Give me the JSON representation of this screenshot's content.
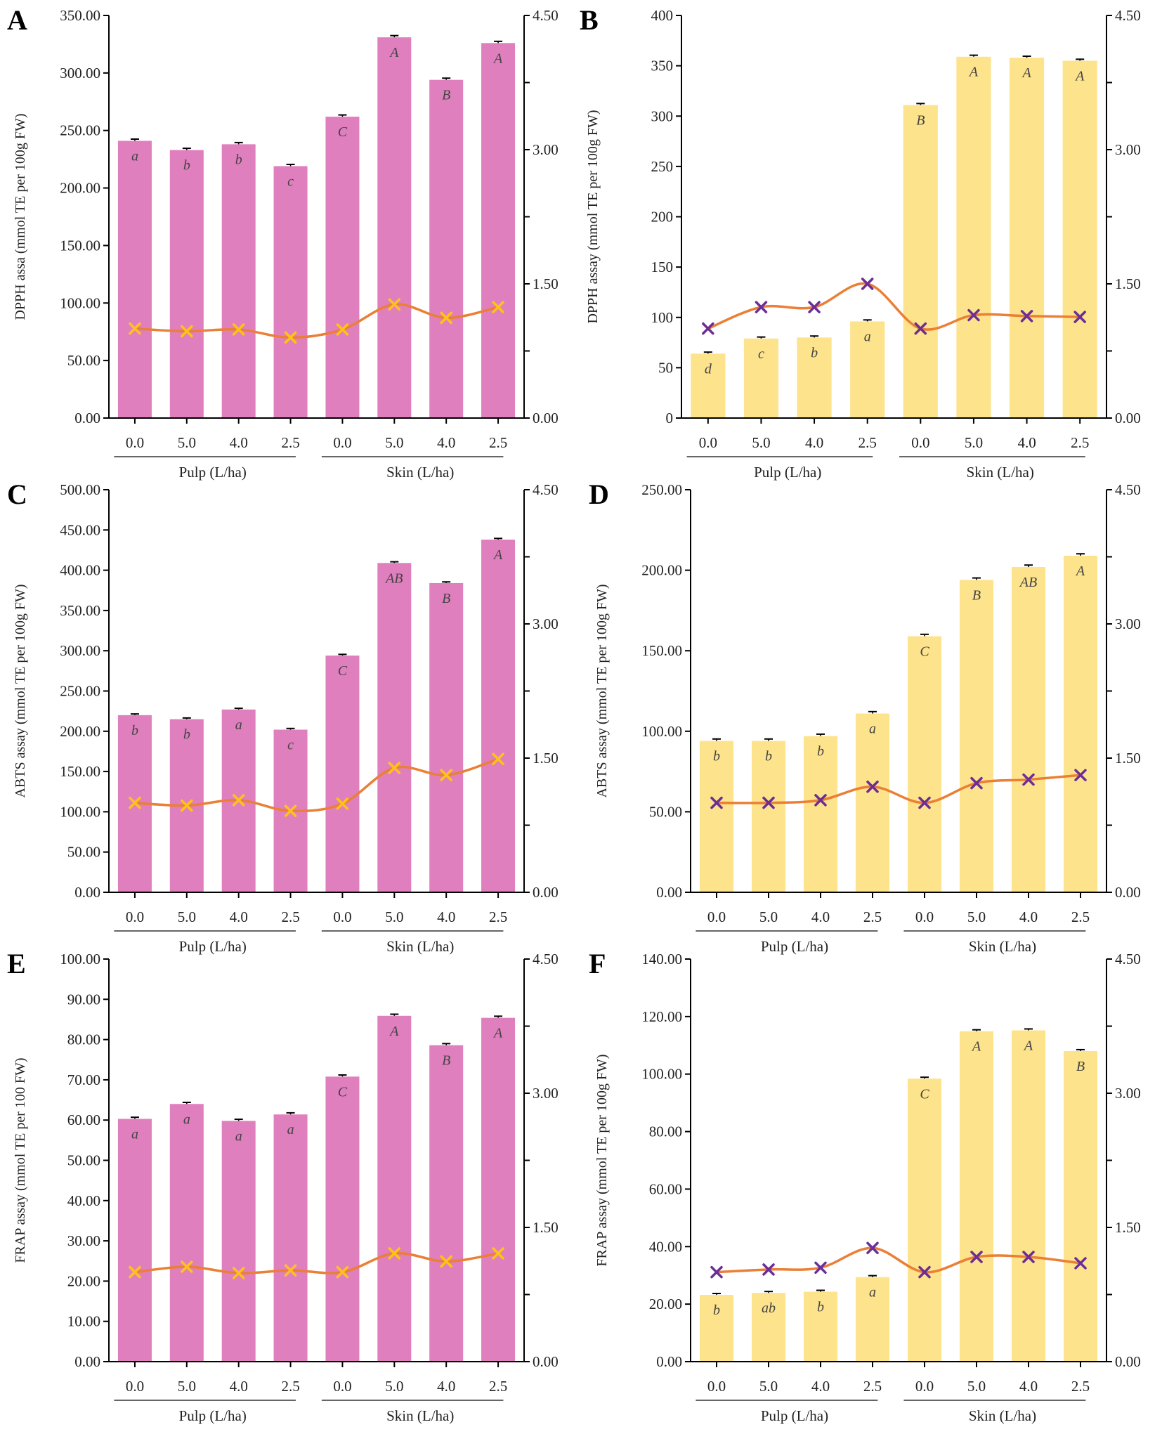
{
  "colors": {
    "pink_bar": "#e07fbe",
    "yellow_bar": "#fde38c",
    "line": "#ea7f35",
    "marker_yellow": "#ffc21a",
    "marker_purple": "#6b2d96"
  },
  "chart_data": [
    {
      "panel": "A",
      "type": "bar",
      "bar_color": "pink",
      "marker": "yellow",
      "ylabel": "DPPH assa (mmol TE per 100g FW)",
      "ylim": [
        0,
        350
      ],
      "ytick_step": 50,
      "ytick_labels": [
        "0.00",
        "50.00",
        "100.00",
        "150.00",
        "200.00",
        "250.00",
        "300.00",
        "350.00"
      ],
      "y2lim": [
        0,
        4.5
      ],
      "y2tick_labels": [
        "0.00",
        "1.50",
        "3.00",
        "4.50"
      ],
      "categories": [
        "0.0",
        "5.0",
        "4.0",
        "2.5",
        "0.0",
        "5.0",
        "4.0",
        "2.5"
      ],
      "groups": [
        "Pulp (L/ha)",
        "Skin (L/ha)"
      ],
      "values": [
        241,
        233,
        238,
        219,
        262,
        331,
        294,
        326
      ],
      "errors": [
        1.5,
        1.5,
        1.5,
        1.5,
        1.5,
        1.5,
        1.5,
        1.5
      ],
      "letters": [
        "a",
        "b",
        "b",
        "c",
        "C",
        "A",
        "B",
        "A"
      ],
      "line_values": [
        1.0,
        0.97,
        0.99,
        0.9,
        0.99,
        1.27,
        1.12,
        1.24
      ]
    },
    {
      "panel": "B",
      "type": "bar",
      "bar_color": "yellow",
      "marker": "purple",
      "ylabel": "DPPH assay (mmol TE per 100g FW)",
      "ylim": [
        0,
        400
      ],
      "ytick_step": 50,
      "ytick_labels": [
        "0",
        "50",
        "100",
        "150",
        "200",
        "250",
        "300",
        "350",
        "400"
      ],
      "y2lim": [
        0,
        4.5
      ],
      "y2tick_labels": [
        "0.00",
        "1.50",
        "3.00",
        "4.50"
      ],
      "categories": [
        "0.0",
        "5.0",
        "4.0",
        "2.5",
        "0.0",
        "5.0",
        "4.0",
        "2.5"
      ],
      "groups": [
        "Pulp (L/ha)",
        "Skin (L/ha)"
      ],
      "values": [
        64,
        79,
        80,
        96,
        311,
        359,
        358,
        355
      ],
      "errors": [
        1.5,
        1.5,
        1.5,
        1.5,
        1.5,
        1.5,
        1.5,
        1.5
      ],
      "letters": [
        "d",
        "c",
        "b",
        "a",
        "B",
        "A",
        "A",
        "A"
      ],
      "line_values": [
        1.0,
        1.24,
        1.24,
        1.5,
        1.0,
        1.15,
        1.14,
        1.13
      ]
    },
    {
      "panel": "C",
      "type": "bar",
      "bar_color": "pink",
      "marker": "yellow",
      "ylabel": "ABTS assay (mmol TE per 100g FW)",
      "ylim": [
        0,
        500
      ],
      "ytick_step": 50,
      "ytick_labels": [
        "0.00",
        "50.00",
        "100.00",
        "150.00",
        "200.00",
        "250.00",
        "300.00",
        "350.00",
        "400.00",
        "450.00",
        "500.00"
      ],
      "y2lim": [
        0,
        4.5
      ],
      "y2tick_labels": [
        "0.00",
        "1.50",
        "3.00",
        "4.50"
      ],
      "categories": [
        "0.0",
        "5.0",
        "4.0",
        "2.5",
        "0.0",
        "5.0",
        "4.0",
        "2.5"
      ],
      "groups": [
        "Pulp (L/ha)",
        "Skin (L/ha)"
      ],
      "values": [
        220,
        215,
        227,
        202,
        294,
        409,
        384,
        438
      ],
      "errors": [
        1.5,
        1.5,
        1.5,
        1.5,
        1.5,
        1.5,
        1.5,
        1.5
      ],
      "letters": [
        "b",
        "b",
        "a",
        "c",
        "C",
        "AB",
        "B",
        "A"
      ],
      "line_values": [
        1.0,
        0.97,
        1.03,
        0.91,
        0.99,
        1.39,
        1.31,
        1.49
      ]
    },
    {
      "panel": "D",
      "type": "bar",
      "bar_color": "yellow",
      "marker": "purple",
      "ylabel": "ABTS assay (mmol TE per 100g FW)",
      "ylim": [
        0,
        250
      ],
      "ytick_step": 50,
      "ytick_labels": [
        "0.00",
        "50.00",
        "100.00",
        "150.00",
        "200.00",
        "250.00"
      ],
      "y2lim": [
        0,
        4.5
      ],
      "y2tick_labels": [
        "0.00",
        "1.50",
        "3.00",
        "4.50"
      ],
      "categories": [
        "0.0",
        "5.0",
        "4.0",
        "2.5",
        "0.0",
        "5.0",
        "4.0",
        "2.5"
      ],
      "groups": [
        "Pulp (L/ha)",
        "Skin (L/ha)"
      ],
      "values": [
        94,
        94,
        97,
        111,
        159,
        194,
        202,
        209
      ],
      "errors": [
        1.2,
        1.2,
        1.2,
        1.2,
        1.2,
        1.2,
        1.2,
        1.2
      ],
      "letters": [
        "b",
        "b",
        "b",
        "a",
        "C",
        "B",
        "AB",
        "A"
      ],
      "line_values": [
        1.0,
        1.0,
        1.03,
        1.18,
        1.0,
        1.22,
        1.26,
        1.31
      ]
    },
    {
      "panel": "E",
      "type": "bar",
      "bar_color": "pink",
      "marker": "yellow",
      "ylabel": "FRAP assay (mmol TE per 100 FW)",
      "ylim": [
        0,
        100
      ],
      "ytick_step": 10,
      "ytick_labels": [
        "0.00",
        "10.00",
        "20.00",
        "30.00",
        "40.00",
        "50.00",
        "60.00",
        "70.00",
        "80.00",
        "90.00",
        "100.00"
      ],
      "y2lim": [
        0,
        4.5
      ],
      "y2tick_labels": [
        "0.00",
        "1.50",
        "3.00",
        "4.50"
      ],
      "categories": [
        "0.0",
        "5.0",
        "4.0",
        "2.5",
        "0.0",
        "5.0",
        "4.0",
        "2.5"
      ],
      "groups": [
        "Pulp (L/ha)",
        "Skin (L/ha)"
      ],
      "values": [
        60.3,
        64.0,
        59.8,
        61.4,
        70.8,
        85.9,
        78.6,
        85.4
      ],
      "errors": [
        0.4,
        0.4,
        0.4,
        0.4,
        0.4,
        0.4,
        0.4,
        0.4
      ],
      "letters": [
        "a",
        "a",
        "a",
        "a",
        "C",
        "A",
        "B",
        "A"
      ],
      "line_values": [
        1.0,
        1.06,
        0.99,
        1.02,
        1.0,
        1.21,
        1.12,
        1.21
      ]
    },
    {
      "panel": "F",
      "type": "bar",
      "bar_color": "yellow",
      "marker": "purple",
      "ylabel": "FRAP assay (mmol TE per 100g FW)",
      "ylim": [
        0,
        140
      ],
      "ytick_step": 20,
      "ytick_labels": [
        "0.00",
        "20.00",
        "40.00",
        "60.00",
        "80.00",
        "100.00",
        "120.00",
        "140.00"
      ],
      "y2lim": [
        0,
        4.5
      ],
      "y2tick_labels": [
        "0.00",
        "1.50",
        "3.00",
        "4.50"
      ],
      "categories": [
        "0.0",
        "5.0",
        "4.0",
        "2.5",
        "0.0",
        "5.0",
        "4.0",
        "2.5"
      ],
      "groups": [
        "Pulp (L/ha)",
        "Skin (L/ha)"
      ],
      "values": [
        23.2,
        23.9,
        24.3,
        29.4,
        98.4,
        114.9,
        115.2,
        108.0
      ],
      "errors": [
        0.5,
        0.5,
        0.5,
        0.5,
        0.5,
        0.5,
        0.5,
        0.5
      ],
      "letters": [
        "b",
        "ab",
        "b",
        "a",
        "C",
        "A",
        "A",
        "B"
      ],
      "line_values": [
        1.0,
        1.03,
        1.05,
        1.27,
        1.0,
        1.17,
        1.17,
        1.1
      ]
    }
  ]
}
